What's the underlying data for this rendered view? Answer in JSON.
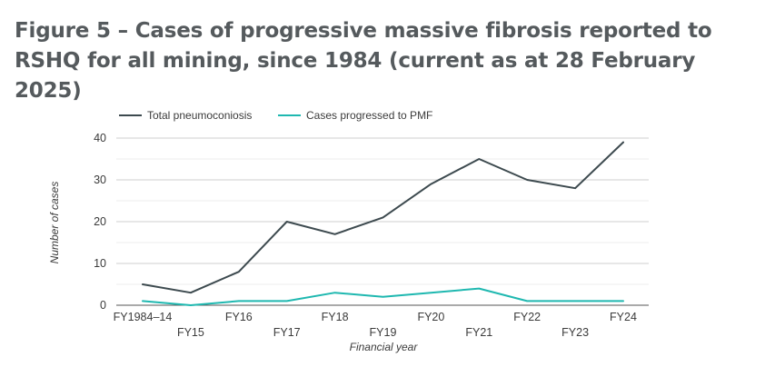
{
  "figure": {
    "title": "Figure 5 – Cases of progressive massive fibrosis reported to RSHQ for all mining, since 1984 (current as at 28 February 2025)"
  },
  "chart_data": {
    "type": "line",
    "categories": [
      "FY1984–14",
      "FY15",
      "FY16",
      "FY17",
      "FY18",
      "FY19",
      "FY20",
      "FY21",
      "FY22",
      "FY23",
      "FY24"
    ],
    "series": [
      {
        "name": "Total pneumoconiosis",
        "color": "#3d4a4f",
        "values": [
          5,
          3,
          8,
          20,
          17,
          21,
          29,
          35,
          30,
          28,
          39
        ]
      },
      {
        "name": "Cases progressed to PMF",
        "color": "#1fb8b0",
        "values": [
          1,
          0,
          1,
          1,
          3,
          2,
          3,
          4,
          1,
          1,
          1
        ]
      }
    ],
    "xlabel": "Financial year",
    "ylabel": "Number of cases",
    "ylim": [
      0,
      40
    ],
    "yticks": [
      0,
      10,
      20,
      30,
      40
    ],
    "grid": true,
    "legend_position": "top-left"
  }
}
